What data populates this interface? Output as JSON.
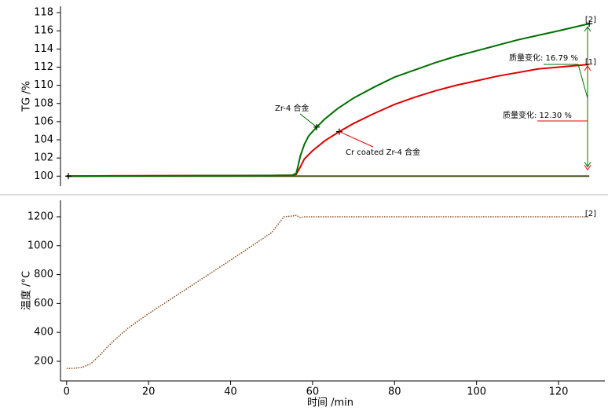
{
  "chart_data": [
    {
      "type": "line",
      "ylabel": "TG /%",
      "xlim": [
        -1.5,
        131.3
      ],
      "ylim": [
        98.9,
        118.7
      ],
      "yticks": [
        100,
        102,
        104,
        106,
        108,
        110,
        112,
        114,
        116,
        118
      ],
      "series": [
        {
          "color": "#4b5320",
          "x": [
            0,
            127.5
          ],
          "values": [
            100,
            100
          ]
        },
        {
          "name": "Cr coated Zr-4 合金",
          "color": "#e00000",
          "x": [
            0,
            10,
            20,
            30,
            40,
            50,
            55,
            56,
            57,
            58,
            60,
            63,
            66.5,
            70,
            75,
            80,
            85,
            90,
            95,
            100,
            105,
            110,
            115,
            120,
            127.5
          ],
          "values": [
            100,
            100.03,
            100.05,
            100.06,
            100.07,
            100.08,
            100.1,
            100.2,
            101.0,
            101.9,
            102.8,
            103.9,
            104.9,
            105.8,
            106.9,
            107.9,
            108.7,
            109.4,
            110.0,
            110.5,
            111.0,
            111.4,
            111.8,
            112.0,
            112.3
          ]
        },
        {
          "name": "Zr-4 合金",
          "color": "#007000",
          "x": [
            0,
            10,
            20,
            30,
            40,
            50,
            55,
            56,
            56.5,
            57,
            58,
            59,
            60,
            61,
            63,
            66,
            70,
            75,
            80,
            85,
            90,
            95,
            100,
            105,
            110,
            115,
            120,
            127.5
          ],
          "values": [
            100,
            100.02,
            100.04,
            100.05,
            100.06,
            100.07,
            100.1,
            100.3,
            101.2,
            102.2,
            103.5,
            104.4,
            104.9,
            105.4,
            106.3,
            107.4,
            108.6,
            109.8,
            110.9,
            111.7,
            112.5,
            113.2,
            113.8,
            114.4,
            115.0,
            115.5,
            116.0,
            116.79
          ]
        }
      ],
      "annotations": [
        "质量变化: 16.79 %",
        "质量变化: 12.30 %",
        "[2]",
        "[1]"
      ]
    },
    {
      "type": "line",
      "xlabel": "时间 /min",
      "ylabel": "温度 /°C",
      "xlim": [
        -1.5,
        131.3
      ],
      "ylim": [
        64,
        1314
      ],
      "xticks": [
        0,
        20,
        40,
        60,
        80,
        100,
        120
      ],
      "yticks": [
        200,
        400,
        600,
        800,
        1000,
        1200
      ],
      "series": [
        {
          "color": "#8b4a1a",
          "dotted": true,
          "x": [
            0,
            2,
            4,
            6,
            8,
            10,
            12,
            15,
            20,
            30,
            40,
            50,
            53,
            55,
            56,
            57,
            58,
            70,
            90,
            110,
            127.5
          ],
          "values": [
            150,
            152,
            160,
            185,
            240,
            300,
            355,
            430,
            530,
            715,
            900,
            1090,
            1200,
            1205,
            1210,
            1195,
            1200,
            1200,
            1200,
            1200,
            1200
          ]
        }
      ],
      "annotations": [
        "[2]"
      ]
    }
  ]
}
